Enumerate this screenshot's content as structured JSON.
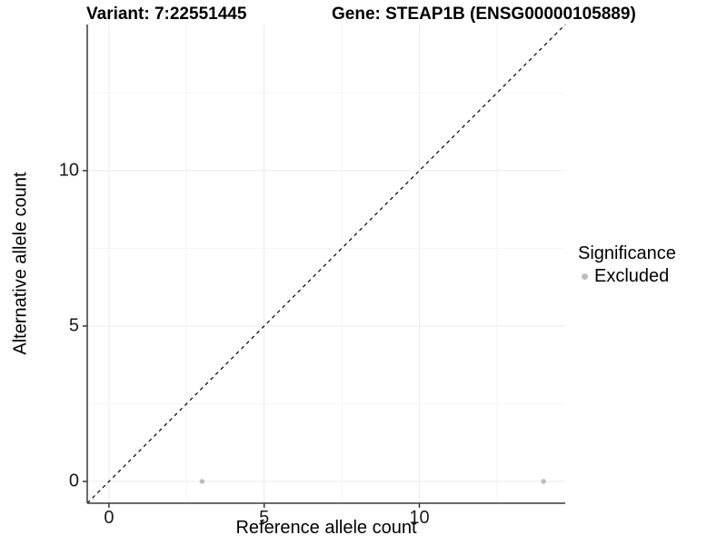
{
  "title": {
    "variant": "Variant: 7:22551445",
    "gene": "Gene: STEAP1B (ENSG00000105889)"
  },
  "axes": {
    "x": {
      "label": "Reference allele count",
      "ticks": [
        0,
        5,
        10
      ],
      "minor_ticks": [
        2.5,
        7.5,
        12.5
      ],
      "range": [
        -0.7,
        14.7
      ]
    },
    "y": {
      "label": "Alternative allele count",
      "ticks": [
        0,
        5,
        10
      ],
      "minor_ticks": [
        2.5,
        7.5,
        12.5
      ],
      "range": [
        -0.7,
        14.7
      ]
    }
  },
  "legend": {
    "title": "Significance",
    "items": [
      {
        "label": "Excluded",
        "color": "#bdbdbd"
      }
    ]
  },
  "chart_data": {
    "type": "scatter",
    "title": "Variant: 7:22551445",
    "subtitle": "Gene: STEAP1B (ENSG00000105889)",
    "xlabel": "Reference allele count",
    "ylabel": "Alternative allele count",
    "xlim": [
      -0.7,
      14.7
    ],
    "ylim": [
      -0.7,
      14.7
    ],
    "x_ticks": [
      0,
      5,
      10
    ],
    "y_ticks": [
      0,
      5,
      10
    ],
    "x_minor_ticks": [
      2.5,
      7.5,
      12.5
    ],
    "y_minor_ticks": [
      2.5,
      7.5,
      12.5
    ],
    "grid": "major and minor, very light gray",
    "legend_position": "right-center",
    "series": [
      {
        "name": "Excluded",
        "color": "#bdbdbd",
        "points": [
          {
            "x": 3,
            "y": 0
          },
          {
            "x": 14,
            "y": 0
          }
        ]
      }
    ],
    "reference_line": {
      "kind": "identity y=x",
      "style": "dashed",
      "color": "#000000",
      "from": [
        -0.7,
        -0.7
      ],
      "to": [
        14.7,
        14.7
      ]
    }
  },
  "colors": {
    "background": "#ffffff",
    "point_excluded": "#bdbdbd",
    "grid_major": "#ebebeb",
    "grid_minor": "#f5f5f5",
    "axis_line": "#3a3a3a",
    "tick_mark": "#333333",
    "tick_text": "#1a1a1a",
    "dashed_line": "#000000",
    "text": "#000000"
  }
}
